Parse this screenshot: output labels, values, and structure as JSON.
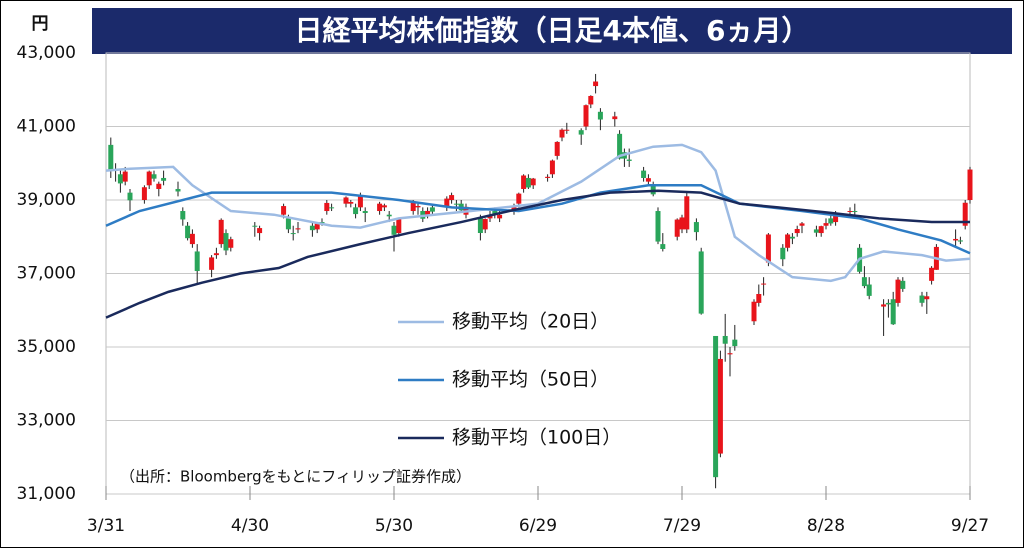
{
  "chart_data": {
    "type": "candlestick",
    "title": "日経平均株価指数（日足4本値、6ヵ月）",
    "y_unit": "円",
    "note": "（出所：Bloombergをもとにフィリップ証券作成）",
    "up_color": "#e8141b",
    "down_color": "#2aa55a",
    "x": [
      1,
      2,
      3,
      4,
      5,
      8,
      9,
      10,
      11,
      12,
      15,
      16,
      17,
      18,
      19,
      22,
      23,
      24,
      25,
      26,
      31,
      32,
      37,
      38,
      39,
      40,
      43,
      44,
      45,
      46,
      47,
      50,
      51,
      52,
      53,
      54,
      57,
      58,
      59,
      60,
      61,
      64,
      65,
      66,
      67,
      68,
      71,
      72,
      73,
      74,
      75,
      78,
      79,
      80,
      81,
      82,
      85,
      86,
      87,
      88,
      89,
      92,
      93,
      94,
      95,
      96,
      99,
      100,
      101,
      102,
      103,
      106,
      107,
      108,
      109,
      112,
      113,
      114,
      115,
      116,
      119,
      120,
      121,
      123,
      124,
      127,
      128,
      129,
      130,
      131,
      135,
      136,
      137,
      138,
      141,
      142,
      143,
      144,
      145,
      148,
      149,
      150,
      151,
      152,
      155,
      156,
      157,
      158,
      159,
      162,
      163,
      164,
      165,
      166,
      170,
      171,
      172,
      173,
      177,
      178,
      179,
      180
    ],
    "ohlc": [
      [
        40500,
        40700,
        39600,
        39803
      ],
      [
        39800,
        40000,
        39500,
        39838
      ],
      [
        39700,
        39800,
        39200,
        39451
      ],
      [
        39500,
        39900,
        39400,
        39773
      ],
      [
        39200,
        39300,
        38700,
        38992
      ],
      [
        39000,
        39400,
        38900,
        39347
      ],
      [
        39400,
        39800,
        39300,
        39773
      ],
      [
        39700,
        39800,
        39500,
        39581
      ],
      [
        39300,
        39500,
        39100,
        39442
      ],
      [
        39600,
        39800,
        39400,
        39523
      ],
      [
        39300,
        39500,
        39100,
        39232
      ],
      [
        38700,
        38800,
        38300,
        38471
      ],
      [
        38300,
        38400,
        37900,
        37961
      ],
      [
        37800,
        38200,
        37700,
        38079
      ],
      [
        37600,
        37800,
        36700,
        37068
      ],
      [
        37100,
        37500,
        36900,
        37438
      ],
      [
        37500,
        37700,
        37400,
        37552
      ],
      [
        37800,
        38500,
        37700,
        38460
      ],
      [
        38100,
        38200,
        37500,
        37628
      ],
      [
        37700,
        38000,
        37600,
        37934
      ],
      [
        38300,
        38400,
        38000,
        38274
      ],
      [
        38100,
        38300,
        37900,
        38236
      ],
      [
        38600,
        38900,
        38500,
        38835
      ],
      [
        38500,
        38600,
        38100,
        38202
      ],
      [
        38100,
        38300,
        37900,
        38073
      ],
      [
        38200,
        38400,
        38100,
        38229
      ],
      [
        38300,
        38400,
        38000,
        38179
      ],
      [
        38200,
        38400,
        38100,
        38356
      ],
      [
        38400,
        38500,
        38300,
        38385
      ],
      [
        38700,
        39000,
        38600,
        38920
      ],
      [
        38800,
        38900,
        38700,
        38787
      ],
      [
        38900,
        39100,
        38800,
        39069
      ],
      [
        38900,
        39000,
        38800,
        38946
      ],
      [
        38800,
        38900,
        38500,
        38617
      ],
      [
        38800,
        39200,
        38700,
        39103
      ],
      [
        38700,
        38800,
        38400,
        38646
      ],
      [
        38700,
        38950,
        38600,
        38900
      ],
      [
        38800,
        38900,
        38700,
        38855
      ],
      [
        38600,
        38700,
        38400,
        38556
      ],
      [
        38300,
        38400,
        37600,
        38054
      ],
      [
        38100,
        38500,
        38000,
        38487
      ],
      [
        38700,
        39000,
        38600,
        38923
      ],
      [
        38800,
        38900,
        38600,
        38837
      ],
      [
        38700,
        38800,
        38400,
        38490
      ],
      [
        38600,
        38800,
        38500,
        38703
      ],
      [
        38800,
        38900,
        38600,
        38683
      ],
      [
        38800,
        39100,
        38700,
        39038
      ],
      [
        39000,
        39200,
        38900,
        39134
      ],
      [
        38900,
        39000,
        38700,
        38876
      ],
      [
        38900,
        39000,
        38700,
        38720
      ],
      [
        38600,
        38900,
        38500,
        38814
      ],
      [
        38500,
        38600,
        37900,
        38102
      ],
      [
        38200,
        38500,
        38100,
        38482
      ],
      [
        38500,
        38700,
        38400,
        38570
      ],
      [
        38700,
        38800,
        38500,
        38633
      ],
      [
        38500,
        38700,
        38400,
        38596
      ],
      [
        38700,
        38900,
        38600,
        38804
      ],
      [
        38900,
        39200,
        38800,
        39173
      ],
      [
        39300,
        39700,
        39200,
        39667
      ],
      [
        39600,
        39700,
        39300,
        39341
      ],
      [
        39400,
        39600,
        39300,
        39583
      ],
      [
        39600,
        39700,
        39500,
        39631
      ],
      [
        39700,
        40100,
        39600,
        40074
      ],
      [
        40200,
        40600,
        40100,
        40580
      ],
      [
        40700,
        40950,
        40600,
        40913
      ],
      [
        40900,
        41100,
        40800,
        40912
      ],
      [
        40900,
        40950,
        40500,
        40780
      ],
      [
        41000,
        41600,
        40900,
        41580
      ],
      [
        41600,
        41850,
        41500,
        41831
      ],
      [
        42100,
        42430,
        41900,
        42224
      ],
      [
        41400,
        41500,
        40900,
        41190
      ],
      [
        41200,
        41400,
        41000,
        41275
      ],
      [
        40800,
        40900,
        40100,
        40126
      ],
      [
        40300,
        40400,
        39900,
        40126
      ],
      [
        40100,
        40400,
        39900,
        40063
      ],
      [
        39800,
        39900,
        39500,
        39599
      ],
      [
        39500,
        39700,
        39400,
        39594
      ],
      [
        39400,
        39500,
        39100,
        39154
      ],
      [
        38700,
        38800,
        37800,
        37869
      ],
      [
        37800,
        38100,
        37600,
        37667
      ],
      [
        38000,
        38500,
        37900,
        38468
      ],
      [
        38200,
        38600,
        38100,
        38525
      ],
      [
        38200,
        39200,
        38100,
        39101
      ],
      [
        38400,
        38500,
        37900,
        38126
      ],
      [
        37600,
        37700,
        35880,
        35909
      ],
      [
        35300,
        35300,
        31156,
        31458
      ],
      [
        32100,
        34900,
        32000,
        34675
      ],
      [
        35300,
        35900,
        34600,
        35089
      ],
      [
        34800,
        35000,
        34200,
        34831
      ],
      [
        35200,
        35600,
        34900,
        35025
      ],
      [
        35700,
        36300,
        35600,
        36232
      ],
      [
        36200,
        36700,
        36100,
        36442
      ],
      [
        36700,
        36900,
        36400,
        36726
      ],
      [
        37300,
        38100,
        37200,
        38062
      ],
      [
        37700,
        37800,
        37200,
        37388
      ],
      [
        37700,
        38100,
        37600,
        38062
      ],
      [
        38000,
        38100,
        37800,
        37951
      ],
      [
        38100,
        38300,
        38000,
        38211
      ],
      [
        38300,
        38400,
        38100,
        38364
      ],
      [
        38200,
        38300,
        38000,
        38110
      ],
      [
        38100,
        38300,
        38000,
        38288
      ],
      [
        38300,
        38500,
        38200,
        38371
      ],
      [
        38500,
        38600,
        38300,
        38362
      ],
      [
        38400,
        38700,
        38300,
        38647
      ],
      [
        38700,
        38800,
        38600,
        38700
      ],
      [
        38700,
        38900,
        38600,
        38686
      ],
      [
        37700,
        37800,
        37000,
        37047
      ],
      [
        36900,
        37200,
        36600,
        36657
      ],
      [
        36700,
        36900,
        36300,
        36391
      ],
      [
        36100,
        36300,
        35300,
        36159
      ],
      [
        36200,
        36300,
        35800,
        36159
      ],
      [
        36300,
        36500,
        35600,
        35619
      ],
      [
        36200,
        36900,
        36100,
        36833
      ],
      [
        36800,
        36900,
        36500,
        36581
      ],
      [
        36400,
        36500,
        36100,
        36203
      ],
      [
        36300,
        36500,
        35900,
        36380
      ],
      [
        36800,
        37200,
        36700,
        37155
      ],
      [
        37100,
        37800,
        37100,
        37723
      ],
      [
        37900,
        38200,
        37700,
        37940
      ],
      [
        37900,
        38000,
        37800,
        37870
      ],
      [
        38300,
        39000,
        38200,
        38925
      ],
      [
        39000,
        39900,
        38900,
        39829
      ]
    ],
    "series": [
      {
        "name": "移動平均（20日）",
        "color": "#9dbbe3",
        "x": [
          0,
          5,
          14,
          18,
          26,
          35,
          47,
          53,
          61,
          76,
          90,
          99,
          107,
          114,
          120,
          124,
          127,
          131,
          136,
          143,
          151,
          154,
          157,
          162,
          170,
          175,
          180
        ],
        "values": [
          39800,
          39850,
          39900,
          39400,
          38700,
          38600,
          38300,
          38250,
          38500,
          38700,
          38900,
          39500,
          40200,
          40450,
          40500,
          40300,
          39800,
          38000,
          37500,
          36900,
          36800,
          36900,
          37400,
          37600,
          37500,
          37350,
          37400
        ]
      },
      {
        "name": "移動平均（50日）",
        "color": "#2e7cc4",
        "x": [
          0,
          7,
          22,
          47,
          61,
          72,
          86,
          95,
          103,
          113,
          124,
          132,
          145,
          157,
          165,
          174,
          180
        ],
        "values": [
          38300,
          38700,
          39200,
          39200,
          39000,
          38800,
          38700,
          38900,
          39200,
          39400,
          39400,
          38900,
          38700,
          38500,
          38200,
          37900,
          37550
        ]
      },
      {
        "name": "移動平均（100日）",
        "color": "#1a2a5c",
        "x": [
          0,
          7,
          13,
          20,
          28,
          36,
          42,
          53,
          63,
          74,
          84,
          95,
          105,
          115,
          124,
          132,
          140,
          151,
          161,
          172,
          180
        ],
        "values": [
          35800,
          36200,
          36500,
          36750,
          37000,
          37150,
          37450,
          37800,
          38100,
          38400,
          38700,
          39000,
          39200,
          39250,
          39200,
          38900,
          38800,
          38650,
          38500,
          38400,
          38400
        ]
      }
    ],
    "xlim": [
      0,
      180
    ],
    "xticks": [
      {
        "value": 0,
        "label": "3/31"
      },
      {
        "value": 30,
        "label": "4/30"
      },
      {
        "value": 60,
        "label": "5/30"
      },
      {
        "value": 90,
        "label": "6/29"
      },
      {
        "value": 120,
        "label": "7/29"
      },
      {
        "value": 150,
        "label": "8/28"
      },
      {
        "value": 180,
        "label": "9/27"
      }
    ],
    "ylim": [
      31000,
      43000
    ],
    "yticks": [
      {
        "value": 31000,
        "label": "31,000"
      },
      {
        "value": 33000,
        "label": "33,000"
      },
      {
        "value": 35000,
        "label": "35,000"
      },
      {
        "value": 37000,
        "label": "37,000"
      },
      {
        "value": 39000,
        "label": "39,000"
      },
      {
        "value": 41000,
        "label": "41,000"
      },
      {
        "value": 43000,
        "label": "43,000"
      }
    ],
    "grid": true
  }
}
